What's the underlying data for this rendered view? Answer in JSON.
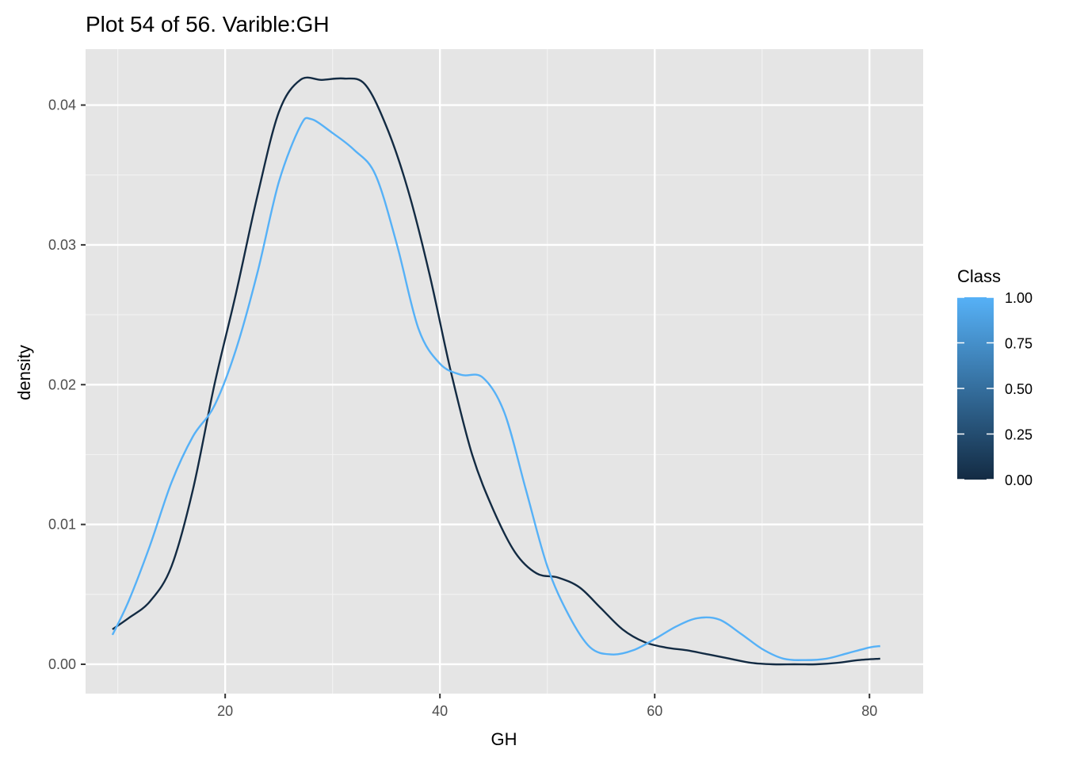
{
  "chart_data": {
    "type": "line",
    "title": "Plot 54 of 56. Varible:GH",
    "xlabel": "GH",
    "ylabel": "density",
    "xlim": [
      7,
      85
    ],
    "ylim": [
      -0.0021,
      0.044
    ],
    "x_ticks": [
      20,
      40,
      60,
      80
    ],
    "y_ticks": [
      0.0,
      0.01,
      0.02,
      0.03,
      0.04
    ],
    "x_tick_labels": [
      "20",
      "40",
      "60",
      "80"
    ],
    "y_tick_labels": [
      "0.00",
      "0.01",
      "0.02",
      "0.03",
      "0.04"
    ],
    "grid": true,
    "legend": {
      "title": "Class",
      "type": "colorbar",
      "position": "right",
      "labels": [
        "1.00",
        "0.75",
        "0.50",
        "0.25",
        "0.00"
      ],
      "values": [
        1.0,
        0.75,
        0.5,
        0.25,
        0.0
      ],
      "color_low": "#132b43",
      "color_high": "#56b1f7"
    },
    "series": [
      {
        "class_value": 0,
        "color": "#132b43",
        "points": [
          [
            9.5,
            0.0025
          ],
          [
            11,
            0.0033
          ],
          [
            13,
            0.0045
          ],
          [
            15,
            0.007
          ],
          [
            17,
            0.0125
          ],
          [
            19,
            0.02
          ],
          [
            21,
            0.0265
          ],
          [
            23,
            0.0335
          ],
          [
            25,
            0.0395
          ],
          [
            27,
            0.0418
          ],
          [
            29,
            0.0418
          ],
          [
            31,
            0.0419
          ],
          [
            33,
            0.0415
          ],
          [
            35,
            0.0385
          ],
          [
            37,
            0.034
          ],
          [
            39,
            0.028
          ],
          [
            41,
            0.021
          ],
          [
            43,
            0.015
          ],
          [
            45,
            0.011
          ],
          [
            47,
            0.008
          ],
          [
            49,
            0.0065
          ],
          [
            51,
            0.0062
          ],
          [
            53,
            0.0055
          ],
          [
            55,
            0.004
          ],
          [
            57,
            0.0025
          ],
          [
            59,
            0.0016
          ],
          [
            61,
            0.0012
          ],
          [
            63,
            0.001
          ],
          [
            65,
            0.0007
          ],
          [
            67,
            0.0004
          ],
          [
            69,
            0.0001
          ],
          [
            71,
            0.0
          ],
          [
            73,
            0.0
          ],
          [
            75,
            0.0
          ],
          [
            77,
            0.0001
          ],
          [
            79,
            0.0003
          ],
          [
            81,
            0.0004
          ]
        ]
      },
      {
        "class_value": 1,
        "color": "#56b1f7",
        "points": [
          [
            9.5,
            0.0021
          ],
          [
            11,
            0.0045
          ],
          [
            13,
            0.0085
          ],
          [
            15,
            0.013
          ],
          [
            17,
            0.0163
          ],
          [
            19,
            0.0185
          ],
          [
            21,
            0.0225
          ],
          [
            23,
            0.028
          ],
          [
            25,
            0.0345
          ],
          [
            27,
            0.0385
          ],
          [
            28,
            0.039
          ],
          [
            30,
            0.038
          ],
          [
            32,
            0.0368
          ],
          [
            34,
            0.035
          ],
          [
            36,
            0.03
          ],
          [
            38,
            0.024
          ],
          [
            40,
            0.0215
          ],
          [
            42,
            0.0207
          ],
          [
            44,
            0.0205
          ],
          [
            46,
            0.018
          ],
          [
            48,
            0.0125
          ],
          [
            50,
            0.007
          ],
          [
            52,
            0.0035
          ],
          [
            54,
            0.0012
          ],
          [
            56,
            0.0007
          ],
          [
            58,
            0.001
          ],
          [
            60,
            0.0018
          ],
          [
            62,
            0.0027
          ],
          [
            64,
            0.0033
          ],
          [
            66,
            0.0032
          ],
          [
            68,
            0.0022
          ],
          [
            70,
            0.0011
          ],
          [
            72,
            0.0004
          ],
          [
            74,
            0.0003
          ],
          [
            76,
            0.0004
          ],
          [
            78,
            0.0008
          ],
          [
            80,
            0.0012
          ],
          [
            81,
            0.0013
          ]
        ]
      }
    ]
  }
}
